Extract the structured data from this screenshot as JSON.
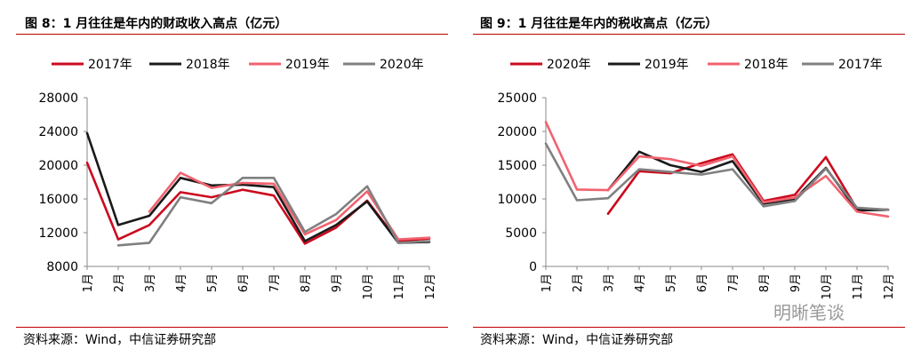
{
  "charts": [
    {
      "figure_title": "图 8：1 月往往是年内的财政收入高点（亿元）",
      "source": "资料来源：Wind，中信证券研究部"
    },
    {
      "figure_title": "图 9：1 月往往是年内的税收高点（亿元）",
      "source": "资料来源：Wind，中信证券研究部"
    }
  ],
  "watermark": "明晰笔谈",
  "chart_data": [
    {
      "type": "line",
      "title": "图 8：1 月往往是年内的财政收入高点（亿元）",
      "categories": [
        "1月",
        "2月",
        "3月",
        "4月",
        "5月",
        "6月",
        "7月",
        "8月",
        "9月",
        "10月",
        "11月",
        "12月"
      ],
      "ylim": [
        8000,
        28000
      ],
      "yticks": [
        "8000",
        "12000",
        "16000",
        "20000",
        "24000",
        "28000"
      ],
      "legend_position": "top",
      "series": [
        {
          "name": "2017年",
          "color": "#cc0a1e",
          "values": [
            20300,
            11200,
            12900,
            16800,
            16200,
            17100,
            16400,
            10700,
            12600,
            15800,
            11000,
            11300
          ]
        },
        {
          "name": "2018年",
          "color": "#1a1a1a",
          "values": [
            23800,
            12900,
            14000,
            18500,
            17600,
            17700,
            17400,
            11000,
            12900,
            15700,
            10800,
            10900
          ]
        },
        {
          "name": "2019年",
          "color": "#f2626f",
          "values": [
            null,
            null,
            14500,
            19100,
            17300,
            17900,
            17800,
            11800,
            13500,
            16900,
            11200,
            11400
          ]
        },
        {
          "name": "2020年",
          "color": "#808080",
          "values": [
            null,
            10500,
            10800,
            16200,
            15500,
            18500,
            18500,
            12100,
            14200,
            17500,
            10800,
            11000
          ]
        }
      ]
    },
    {
      "type": "line",
      "title": "图 9：1 月往往是年内的税收高点（亿元）",
      "categories": [
        "1月",
        "2月",
        "3月",
        "4月",
        "5月",
        "6月",
        "7月",
        "8月",
        "9月",
        "10月",
        "11月",
        "12月"
      ],
      "ylim": [
        0,
        25000
      ],
      "yticks": [
        "0",
        "5000",
        "10000",
        "15000",
        "20000",
        "25000"
      ],
      "legend_position": "top",
      "series": [
        {
          "name": "2020年",
          "color": "#cc0a1e",
          "values": [
            null,
            null,
            7800,
            14100,
            13800,
            15300,
            16600,
            9700,
            10600,
            16200,
            8500,
            8400
          ]
        },
        {
          "name": "2019年",
          "color": "#1a1a1a",
          "values": [
            null,
            null,
            11300,
            17000,
            15000,
            14000,
            15600,
            9300,
            10000,
            14600,
            8300,
            8400
          ]
        },
        {
          "name": "2018年",
          "color": "#f2626f",
          "values": [
            21400,
            11400,
            11300,
            16300,
            15900,
            14900,
            16300,
            9500,
            10200,
            13400,
            8100,
            7400
          ]
        },
        {
          "name": "2017年",
          "color": "#808080",
          "values": [
            18200,
            9800,
            10100,
            14400,
            14000,
            13600,
            14400,
            8900,
            9700,
            14500,
            8700,
            8400
          ]
        }
      ]
    }
  ]
}
